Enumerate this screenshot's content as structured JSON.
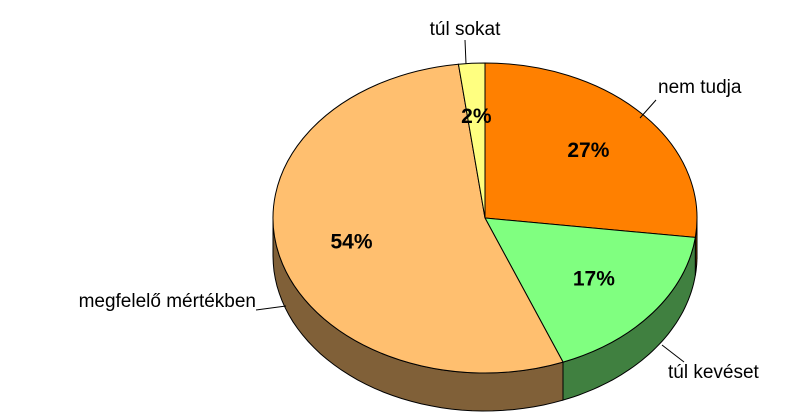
{
  "chart_data": {
    "type": "pie",
    "categories": [
      "nem tudja",
      "túl kevéset",
      "megfelelő mértékben",
      "túl sokat"
    ],
    "values": [
      27,
      17,
      54,
      2
    ],
    "value_labels": [
      "27%",
      "17%",
      "54%",
      "2%"
    ],
    "colors": [
      "#ff8000",
      "#80ff80",
      "#ffbf6f",
      "#ffff80"
    ]
  }
}
